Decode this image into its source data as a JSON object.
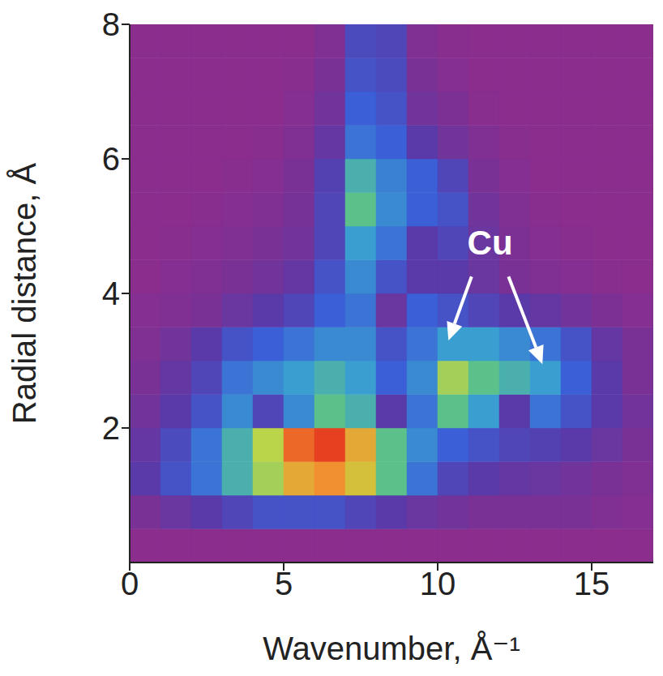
{
  "chart_data": {
    "type": "heatmap",
    "x_label": "Wavenumber, Å⁻¹",
    "y_label": "Radial distance, Å",
    "xlim": [
      0,
      17
    ],
    "ylim": [
      0,
      8
    ],
    "xticks": [
      0,
      5,
      10,
      15
    ],
    "yticks": [
      2,
      4,
      6,
      8
    ],
    "grid": false,
    "color_range": [
      0,
      1
    ],
    "x": [
      0.5,
      1.5,
      2.5,
      3.5,
      4.5,
      5.5,
      6.5,
      7.5,
      8.5,
      9.5,
      10.5,
      11.5,
      12.5,
      13.5,
      14.5,
      15.5,
      16.5
    ],
    "y": [
      0.25,
      0.75,
      1.25,
      1.75,
      2.25,
      2.75,
      3.25,
      3.75,
      4.25,
      4.75,
      5.25,
      5.75,
      6.25,
      6.75,
      7.25,
      7.75
    ],
    "cells": [
      [
        0,
        0,
        0,
        0,
        0,
        0,
        0,
        0,
        0,
        0,
        0,
        0,
        0,
        0,
        0,
        0,
        0
      ],
      [
        0.05,
        0.1,
        0.15,
        0.2,
        0.25,
        0.25,
        0.25,
        0.2,
        0.15,
        0.1,
        0.08,
        0.05,
        0.05,
        0.05,
        0.05,
        0.03,
        0.02
      ],
      [
        0.15,
        0.25,
        0.35,
        0.5,
        0.65,
        0.8,
        0.85,
        0.75,
        0.55,
        0.35,
        0.2,
        0.15,
        0.12,
        0.1,
        0.08,
        0.05,
        0.03
      ],
      [
        0.12,
        0.22,
        0.35,
        0.5,
        0.68,
        0.9,
        0.95,
        0.8,
        0.55,
        0.4,
        0.3,
        0.25,
        0.2,
        0.18,
        0.15,
        0.1,
        0.05
      ],
      [
        0.08,
        0.15,
        0.25,
        0.4,
        0.2,
        0.4,
        0.55,
        0.5,
        0.15,
        0.35,
        0.55,
        0.45,
        0.15,
        0.35,
        0.25,
        0.15,
        0.08
      ],
      [
        0.05,
        0.12,
        0.2,
        0.35,
        0.4,
        0.45,
        0.5,
        0.45,
        0.3,
        0.4,
        0.65,
        0.55,
        0.5,
        0.45,
        0.3,
        0.15,
        0.05
      ],
      [
        0.03,
        0.08,
        0.15,
        0.25,
        0.3,
        0.35,
        0.4,
        0.4,
        0.25,
        0.35,
        0.45,
        0.45,
        0.4,
        0.35,
        0.25,
        0.12,
        0.05
      ],
      [
        0.02,
        0.03,
        0.05,
        0.1,
        0.15,
        0.2,
        0.3,
        0.35,
        0.1,
        0.3,
        0.25,
        0.2,
        0.15,
        0.12,
        0.08,
        0.04,
        0.02
      ],
      [
        0,
        0.02,
        0.03,
        0.05,
        0.08,
        0.12,
        0.25,
        0.4,
        0.25,
        0.15,
        0.15,
        0.1,
        0.05,
        0.03,
        0.02,
        0.01,
        0
      ],
      [
        0,
        0.01,
        0.02,
        0.03,
        0.05,
        0.08,
        0.2,
        0.45,
        0.35,
        0.15,
        0.2,
        0.1,
        0.04,
        0.02,
        0.01,
        0,
        0
      ],
      [
        0,
        0,
        0.01,
        0.02,
        0.03,
        0.06,
        0.2,
        0.55,
        0.4,
        0.3,
        0.25,
        0.08,
        0.03,
        0.01,
        0,
        0,
        0
      ],
      [
        0,
        0,
        0,
        0.01,
        0.02,
        0.05,
        0.18,
        0.5,
        0.38,
        0.3,
        0.2,
        0.05,
        0.02,
        0,
        0,
        0,
        0
      ],
      [
        0,
        0,
        0,
        0,
        0.01,
        0.03,
        0.12,
        0.35,
        0.3,
        0.15,
        0.08,
        0.03,
        0.01,
        0,
        0,
        0,
        0
      ],
      [
        0,
        0,
        0,
        0,
        0,
        0.02,
        0.08,
        0.3,
        0.25,
        0.08,
        0.04,
        0.01,
        0,
        0,
        0,
        0,
        0
      ],
      [
        0,
        0,
        0,
        0,
        0,
        0.01,
        0.05,
        0.25,
        0.22,
        0.05,
        0.02,
        0,
        0,
        0,
        0,
        0,
        0
      ],
      [
        0,
        0,
        0,
        0,
        0,
        0,
        0.03,
        0.22,
        0.2,
        0.03,
        0.01,
        0,
        0,
        0,
        0,
        0,
        0
      ]
    ],
    "annotations": [
      {
        "text": "Cu",
        "x": 11.7,
        "y": 4.75,
        "arrows": [
          {
            "from": [
              11.1,
              4.25
            ],
            "to": [
              10.35,
              3.3
            ]
          },
          {
            "from": [
              12.3,
              4.25
            ],
            "to": [
              13.4,
              2.95
            ]
          }
        ]
      }
    ]
  }
}
